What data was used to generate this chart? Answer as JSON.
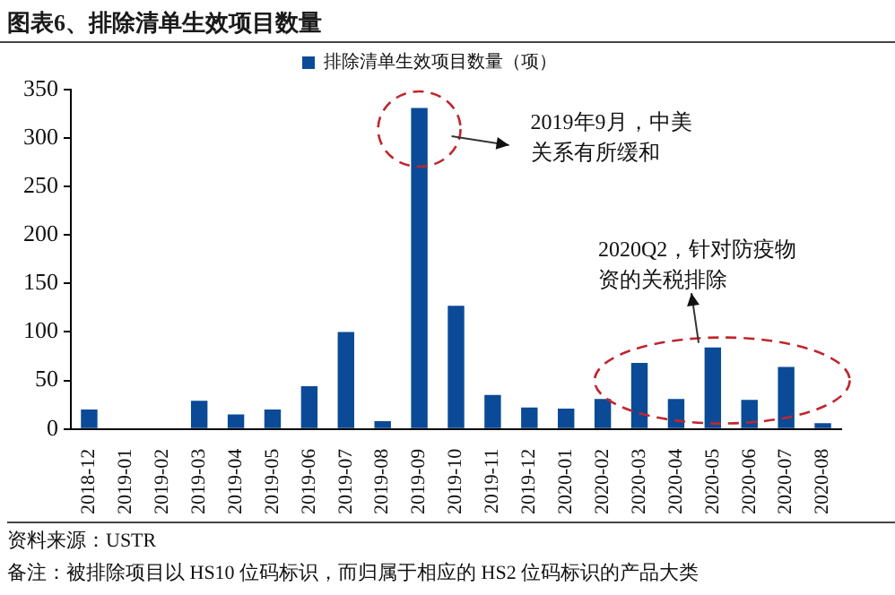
{
  "chart_data": {
    "type": "bar",
    "title": "图表6、排除清单生效项目数量",
    "categories": [
      "2018-12",
      "2019-01",
      "2019-02",
      "2019-03",
      "2019-04",
      "2019-05",
      "2019-06",
      "2019-07",
      "2019-08",
      "2019-09",
      "2019-10",
      "2019-11",
      "2019-12",
      "2020-01",
      "2020-02",
      "2020-03",
      "2020-04",
      "2020-05",
      "2020-06",
      "2020-07",
      "2020-08"
    ],
    "series": [
      {
        "name": "排除清单生效项目数量（项）",
        "color": "#0b4a96",
        "values": [
          20,
          0,
          0,
          29,
          15,
          20,
          44,
          100,
          8,
          331,
          127,
          35,
          22,
          21,
          31,
          68,
          31,
          84,
          30,
          64,
          6
        ]
      }
    ],
    "ylim": [
      0,
      350
    ],
    "yticks": [
      0,
      50,
      100,
      150,
      200,
      250,
      300,
      350
    ],
    "grid": false,
    "legend": "top",
    "annotations": [
      "2019年9月，中美关系有所缓和",
      "2020Q2，针对防疫物资的关税排除",
      "资料来源：USTR",
      "备注：被排除项目以 HS10 位码标识，而归属于相应的 HS2 位码标识的产品大类"
    ]
  }
}
